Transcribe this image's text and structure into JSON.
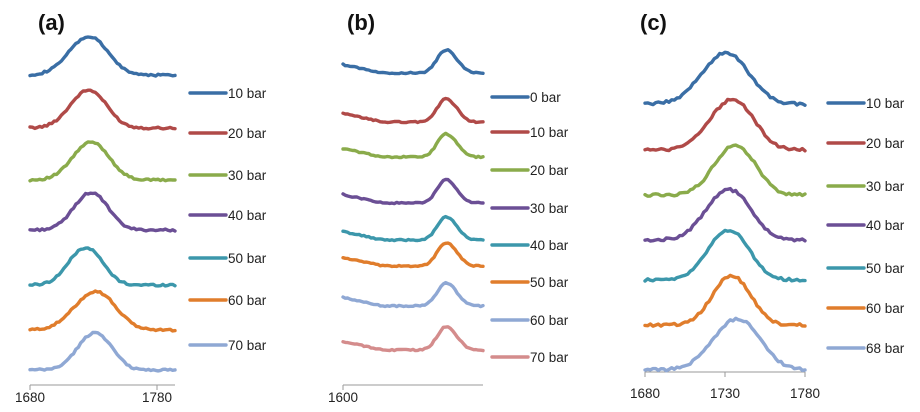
{
  "chart_data": [
    {
      "panel": "(a)",
      "type": "line",
      "x_ticks": [
        "1680",
        "1780"
      ],
      "series": [
        {
          "name": "10 bar",
          "color": "#3a6ea5",
          "peak": 1722,
          "width": 14
        },
        {
          "name": "20 bar",
          "color": "#b04a48",
          "peak": 1722,
          "width": 13
        },
        {
          "name": "30 bar",
          "color": "#8aab4b",
          "peak": 1724,
          "width": 13
        },
        {
          "name": "40 bar",
          "color": "#6b4f95",
          "peak": 1724,
          "width": 12
        },
        {
          "name": "50 bar",
          "color": "#3c97ab",
          "peak": 1720,
          "width": 12
        },
        {
          "name": "60 bar",
          "color": "#e07d2c",
          "peak": 1727,
          "width": 15
        },
        {
          "name": "70 bar",
          "color": "#8fa8d4",
          "peak": 1727,
          "width": 12
        }
      ]
    },
    {
      "panel": "(b)",
      "type": "line",
      "x_ticks": [
        "1600"
      ],
      "series": [
        {
          "name": "0 bar",
          "color": "#3a6ea5",
          "peak": 0.73,
          "width": 0.06
        },
        {
          "name": "10 bar",
          "color": "#b04a48",
          "peak": 0.73,
          "width": 0.06
        },
        {
          "name": "20 bar",
          "color": "#8aab4b",
          "peak": 0.73,
          "width": 0.06
        },
        {
          "name": "30 bar",
          "color": "#6b4f95",
          "peak": 0.73,
          "width": 0.06
        },
        {
          "name": "40 bar",
          "color": "#3c97ab",
          "peak": 0.73,
          "width": 0.06
        },
        {
          "name": "50 bar",
          "color": "#e07d2c",
          "peak": 0.73,
          "width": 0.06
        },
        {
          "name": "60 bar",
          "color": "#8fa8d4",
          "peak": 0.73,
          "width": 0.06
        },
        {
          "name": "70 bar",
          "color": "#d48c8c",
          "peak": 0.73,
          "width": 0.06
        }
      ]
    },
    {
      "panel": "(c)",
      "type": "line",
      "x_ticks": [
        "1680",
        "1730",
        "1780"
      ],
      "series": [
        {
          "name": "10 bar",
          "color": "#3a6ea5",
          "peak": 1728,
          "width": 14
        },
        {
          "name": "20 bar",
          "color": "#b04a48",
          "peak": 1732,
          "width": 13
        },
        {
          "name": "30 bar",
          "color": "#8aab4b",
          "peak": 1734,
          "width": 12
        },
        {
          "name": "40 bar",
          "color": "#6b4f95",
          "peak": 1730,
          "width": 13
        },
        {
          "name": "50 bar",
          "color": "#3c97ab",
          "peak": 1730,
          "width": 12
        },
        {
          "name": "60 bar",
          "color": "#e07d2c",
          "peak": 1732,
          "width": 11
        },
        {
          "name": "68 bar",
          "color": "#8fa8d4",
          "peak": 1735,
          "width": 14
        }
      ]
    }
  ]
}
